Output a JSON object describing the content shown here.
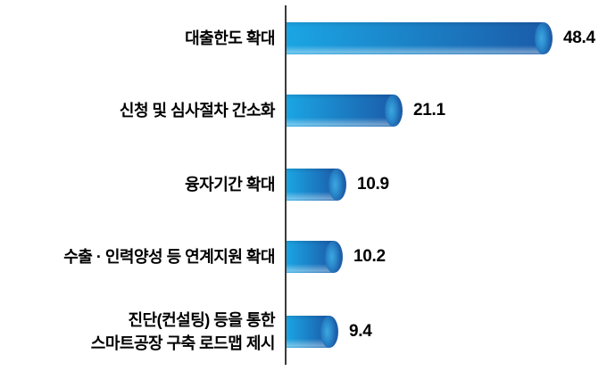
{
  "chart_data": {
    "type": "bar",
    "orientation": "horizontal",
    "title": "",
    "xlabel": "",
    "ylabel": "",
    "xlim": [
      0,
      50
    ],
    "grid": false,
    "legend": false,
    "categories": [
      "대출한도 확대",
      "신청 및 심사절차 간소화",
      "융자기간 확대",
      "수출 · 인력양성 등 연계지원 확대",
      "진단(컨설팅) 등을 통한\n스마트공장 구축 로드맵 제시"
    ],
    "values": [
      48.4,
      21.1,
      10.9,
      10.2,
      9.4
    ],
    "value_labels": [
      "48.4",
      "21.1",
      "10.9",
      "10.2",
      "9.4"
    ],
    "colors": {
      "bar_gradient_start": "#1ba5e3",
      "bar_gradient_end": "#1b5ca9",
      "cap_light": "#3fa6de",
      "cap_mid": "#2b8cce",
      "cap_dark": "#1d5fa9",
      "axis": "#3b3b3b",
      "text": "#000000",
      "background": "#ffffff"
    }
  }
}
